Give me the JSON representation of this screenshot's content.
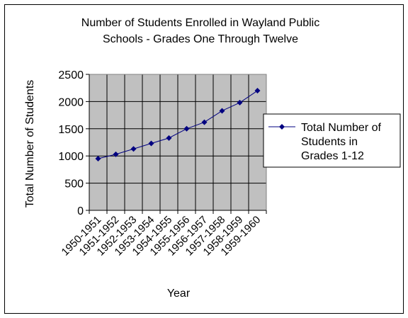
{
  "chart_data": {
    "type": "line",
    "title_lines": [
      "Number of Students Enrolled in Wayland Public",
      "Schools - Grades One Through Twelve"
    ],
    "xlabel": "Year",
    "ylabel": "Total Number of Students",
    "categories": [
      "1950-1951",
      "1951-1952",
      "1952-1953",
      "1953-1954",
      "1954-1955",
      "1955-1956",
      "1956-1957",
      "1957-1958",
      "1958-1959",
      "1959-1960"
    ],
    "series": [
      {
        "name": "Total Number of Students in Grades 1-12",
        "legend_lines": [
          "Total Number of",
          "Students in",
          "Grades 1-12"
        ],
        "values": [
          950,
          1030,
          1130,
          1230,
          1330,
          1500,
          1620,
          1830,
          1980,
          2200
        ],
        "color": "#000080"
      }
    ],
    "ylim": [
      0,
      2500
    ],
    "yticks": [
      0,
      500,
      1000,
      1500,
      2000,
      2500
    ],
    "grid": true,
    "plot_background": "#c0c0c0",
    "legend_position": "right"
  }
}
